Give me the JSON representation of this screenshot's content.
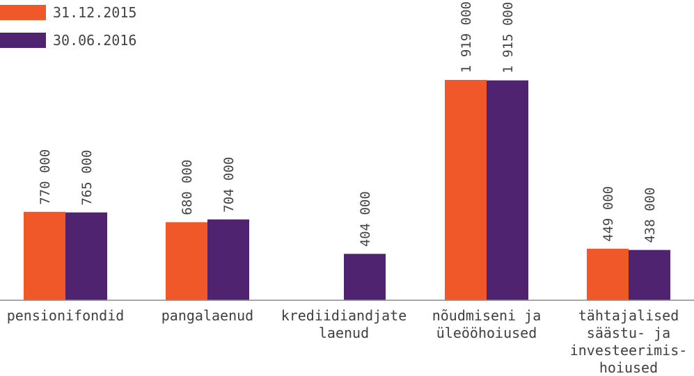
{
  "chart_data": {
    "type": "bar",
    "categories": [
      [
        "pensionifondid"
      ],
      [
        "pangalaenud"
      ],
      [
        "krediidiandjate",
        "laenud"
      ],
      [
        "nõudmiseni ja",
        "üleööhoiused"
      ],
      [
        "tähtajalised",
        "säästu- ja",
        "investeerimis-",
        "hoiused"
      ]
    ],
    "series": [
      {
        "name": "31.12.2015",
        "color": "#f0582a",
        "values": [
          770000,
          680000,
          null,
          1919000,
          449000
        ],
        "labels": [
          "770 000",
          "680 000",
          "",
          "1 919 000",
          "449 000"
        ]
      },
      {
        "name": "30.06.2016",
        "color": "#4f2370",
        "values": [
          765000,
          704000,
          404000,
          1915000,
          438000
        ],
        "labels": [
          "765 000",
          "704 000",
          "404 000",
          "1 915 000",
          "438 000"
        ]
      }
    ],
    "legend_position": "top-left",
    "grid": false
  }
}
